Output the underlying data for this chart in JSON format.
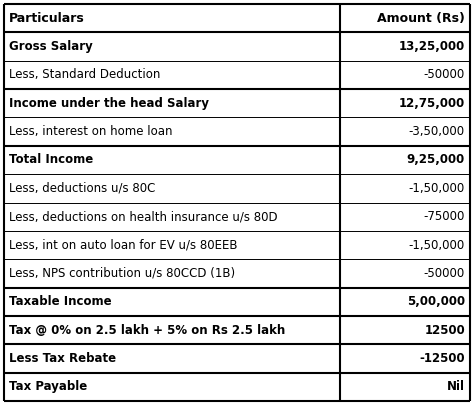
{
  "rows": [
    {
      "particulars": "Particulars",
      "amount": "Amount (Rs)",
      "bold": false,
      "header": true
    },
    {
      "particulars": "Gross Salary",
      "amount": "13,25,000",
      "bold": true,
      "header": false
    },
    {
      "particulars": "Less, Standard Deduction",
      "amount": "-50000",
      "bold": false,
      "header": false
    },
    {
      "particulars": "Income under the head Salary",
      "amount": "12,75,000",
      "bold": true,
      "header": false
    },
    {
      "particulars": "Less, interest on home loan",
      "amount": "-3,50,000",
      "bold": false,
      "header": false
    },
    {
      "particulars": "Total Income",
      "amount": "9,25,000",
      "bold": true,
      "header": false
    },
    {
      "particulars": "Less, deductions u/s 80C",
      "amount": "-1,50,000",
      "bold": false,
      "header": false
    },
    {
      "particulars": "Less, deductions on health insurance u/s 80D",
      "amount": "-75000",
      "bold": false,
      "header": false
    },
    {
      "particulars": "Less, int on auto loan for EV u/s 80EEB",
      "amount": "-1,50,000",
      "bold": false,
      "header": false
    },
    {
      "particulars": "Less, NPS contribution u/s 80CCD (1B)",
      "amount": "-50000",
      "bold": false,
      "header": false
    },
    {
      "particulars": "Taxable Income",
      "amount": "5,00,000",
      "bold": true,
      "header": false
    },
    {
      "particulars": "Tax @ 0% on 2.5 lakh + 5% on Rs 2.5 lakh",
      "amount": "12500",
      "bold": true,
      "header": false
    },
    {
      "particulars": "Less Tax Rebate",
      "amount": "-12500",
      "bold": true,
      "header": false
    },
    {
      "particulars": "Tax Payable",
      "amount": "Nil",
      "bold": true,
      "header": false
    }
  ],
  "col_split": 0.72,
  "bg_color": "#ffffff",
  "line_color": "#000000",
  "text_color": "#000000",
  "font_size": 8.5,
  "header_font_size": 9.0,
  "fig_width": 4.74,
  "fig_height": 4.05,
  "dpi": 100
}
